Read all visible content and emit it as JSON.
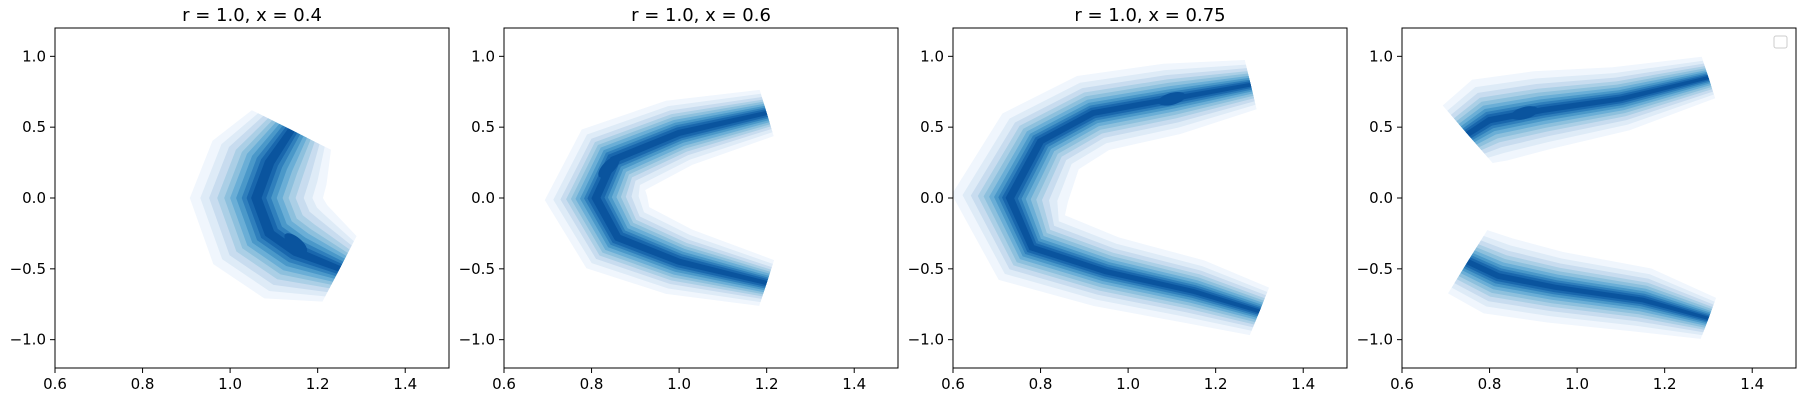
{
  "chart_data": [
    {
      "type": "contour",
      "title": "r = 1.0, x = 0.4",
      "xlabel": "",
      "ylabel": "",
      "xlim": [
        0.6,
        1.5
      ],
      "ylim": [
        -1.2,
        1.2
      ],
      "x_ticks": [
        "0.6",
        "0.8",
        "1.0",
        "1.2",
        "1.4"
      ],
      "y_ticks": [
        "−1.0",
        "−0.5",
        "0.0",
        "0.5",
        "1.0"
      ],
      "density": {
        "shape": "crescent",
        "opening": "right",
        "ridge": [
          [
            1.14,
            0.48
          ],
          [
            1.09,
            0.25
          ],
          [
            1.06,
            0.0
          ],
          [
            1.09,
            -0.25
          ],
          [
            1.15,
            -0.38
          ],
          [
            1.25,
            -0.5
          ]
        ],
        "peak": [
          1.15,
          -0.32
        ]
      }
    },
    {
      "type": "contour",
      "title": "r = 1.0, x = 0.6",
      "xlabel": "",
      "ylabel": "",
      "xlim": [
        0.6,
        1.5
      ],
      "ylim": [
        -1.2,
        1.2
      ],
      "x_ticks": [
        "0.6",
        "0.8",
        "1.0",
        "1.2",
        "1.4"
      ],
      "y_ticks": [
        "−1.0",
        "−0.5",
        "0.0",
        "0.5",
        "1.0"
      ],
      "density": {
        "shape": "crescent",
        "opening": "right",
        "ridge": [
          [
            1.2,
            0.6
          ],
          [
            1.0,
            0.46
          ],
          [
            0.85,
            0.27
          ],
          [
            0.81,
            0.0
          ],
          [
            0.86,
            -0.28
          ],
          [
            1.0,
            -0.45
          ],
          [
            1.2,
            -0.6
          ]
        ],
        "peak": [
          0.84,
          0.22
        ]
      }
    },
    {
      "type": "contour",
      "title": "r = 1.0, x = 0.75",
      "xlabel": "",
      "ylabel": "",
      "xlim": [
        0.6,
        1.5
      ],
      "ylim": [
        -1.2,
        1.2
      ],
      "x_ticks": [
        "0.6",
        "0.8",
        "1.0",
        "1.2",
        "1.4"
      ],
      "y_ticks": [
        "−1.0",
        "−0.5",
        "0.0",
        "0.5",
        "1.0"
      ],
      "density": {
        "shape": "crescent",
        "opening": "right",
        "ridge": [
          [
            1.28,
            0.8
          ],
          [
            1.1,
            0.7
          ],
          [
            0.92,
            0.6
          ],
          [
            0.8,
            0.4
          ],
          [
            0.73,
            0.0
          ],
          [
            0.78,
            -0.35
          ],
          [
            0.95,
            -0.52
          ],
          [
            1.15,
            -0.66
          ],
          [
            1.3,
            -0.8
          ]
        ],
        "peak": [
          1.1,
          0.7
        ]
      }
    },
    {
      "type": "contour",
      "title": "",
      "xlabel": "",
      "ylabel": "",
      "xlim": [
        0.6,
        1.5
      ],
      "ylim": [
        -1.2,
        1.2
      ],
      "x_ticks": [
        "0.6",
        "0.8",
        "1.0",
        "1.2",
        "1.4"
      ],
      "y_ticks": [
        "−1.0",
        "−0.5",
        "0.0",
        "0.5",
        "1.0"
      ],
      "legend": "top-right, empty",
      "density": {
        "shape": "two-lobes",
        "opening": "right",
        "ridge": [
          [
            1.3,
            0.85
          ],
          [
            1.1,
            0.7
          ],
          [
            0.92,
            0.62
          ],
          [
            0.8,
            0.55
          ],
          [
            0.75,
            0.45
          ]
        ],
        "ridge2": [
          [
            0.75,
            -0.45
          ],
          [
            0.82,
            -0.55
          ],
          [
            0.95,
            -0.63
          ],
          [
            1.15,
            -0.72
          ],
          [
            1.3,
            -0.85
          ]
        ],
        "peak": [
          0.88,
          0.6
        ]
      }
    }
  ],
  "colors": {
    "levels": [
      "#f0f6fd",
      "#deebf7",
      "#c8dcef",
      "#abcfe6",
      "#8dc0dd",
      "#6aaed6",
      "#4a98c9",
      "#2f7fbc",
      "#1967ad",
      "#0a549e"
    ]
  }
}
